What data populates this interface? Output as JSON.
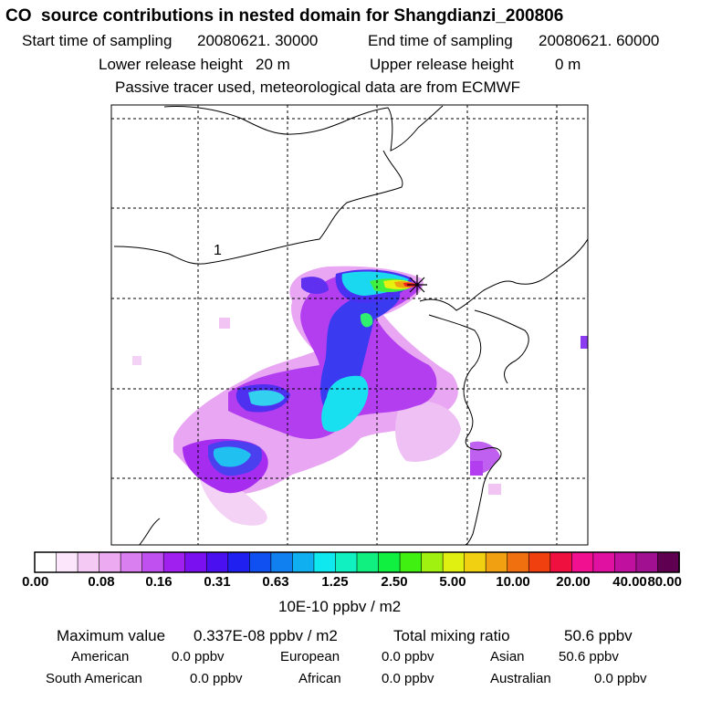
{
  "title": "CO  source contributions in nested domain for Shangdianzi_200806",
  "sampling": {
    "start_label": "Start time of sampling",
    "start_value": "20080621. 30000",
    "end_label": "End time of sampling",
    "end_value": "20080621. 60000"
  },
  "release": {
    "lower_label": "Lower release height",
    "lower_value": "20 m",
    "upper_label": "Upper release height",
    "upper_value": "0 m"
  },
  "tracer_note": "Passive tracer used, meteorological data are from ECMWF",
  "contour_label": "1",
  "colorbar": {
    "ticks": [
      "0.00",
      "0.08",
      "0.16",
      "0.31",
      "0.63",
      "1.25",
      "2.50",
      "5.00",
      "10.00",
      "20.00",
      "40.00",
      "80.00"
    ],
    "unit": "10E-10 ppbv / m2",
    "colors": [
      "#ffffff",
      "#fbe6fb",
      "#f4c9f4",
      "#ecaaf0",
      "#d97ff0",
      "#c050f0",
      "#a020f0",
      "#7a10f0",
      "#4a10f0",
      "#2020f0",
      "#1050f0",
      "#1080f0",
      "#10b0f0",
      "#10e8f0",
      "#10f0c0",
      "#10f080",
      "#10f040",
      "#40f010",
      "#a0f010",
      "#e0f010",
      "#f0d010",
      "#f0a010",
      "#f07010",
      "#f04010",
      "#f01040",
      "#f01090",
      "#e010a0",
      "#c010a0",
      "#a01090",
      "#600050"
    ]
  },
  "summary": {
    "max_label": "Maximum value",
    "max_value": "0.337E-08 ppbv / m2",
    "total_label": "Total mixing ratio",
    "total_value": "50.6 ppbv"
  },
  "regions": [
    {
      "name": "American",
      "value": "0.0 ppbv"
    },
    {
      "name": "European",
      "value": "0.0 ppbv"
    },
    {
      "name": "Asian",
      "value": "50.6 ppbv"
    },
    {
      "name": "South American",
      "value": "0.0 ppbv"
    },
    {
      "name": "African",
      "value": "0.0 ppbv"
    },
    {
      "name": "Australian",
      "value": "0.0 ppbv"
    }
  ]
}
